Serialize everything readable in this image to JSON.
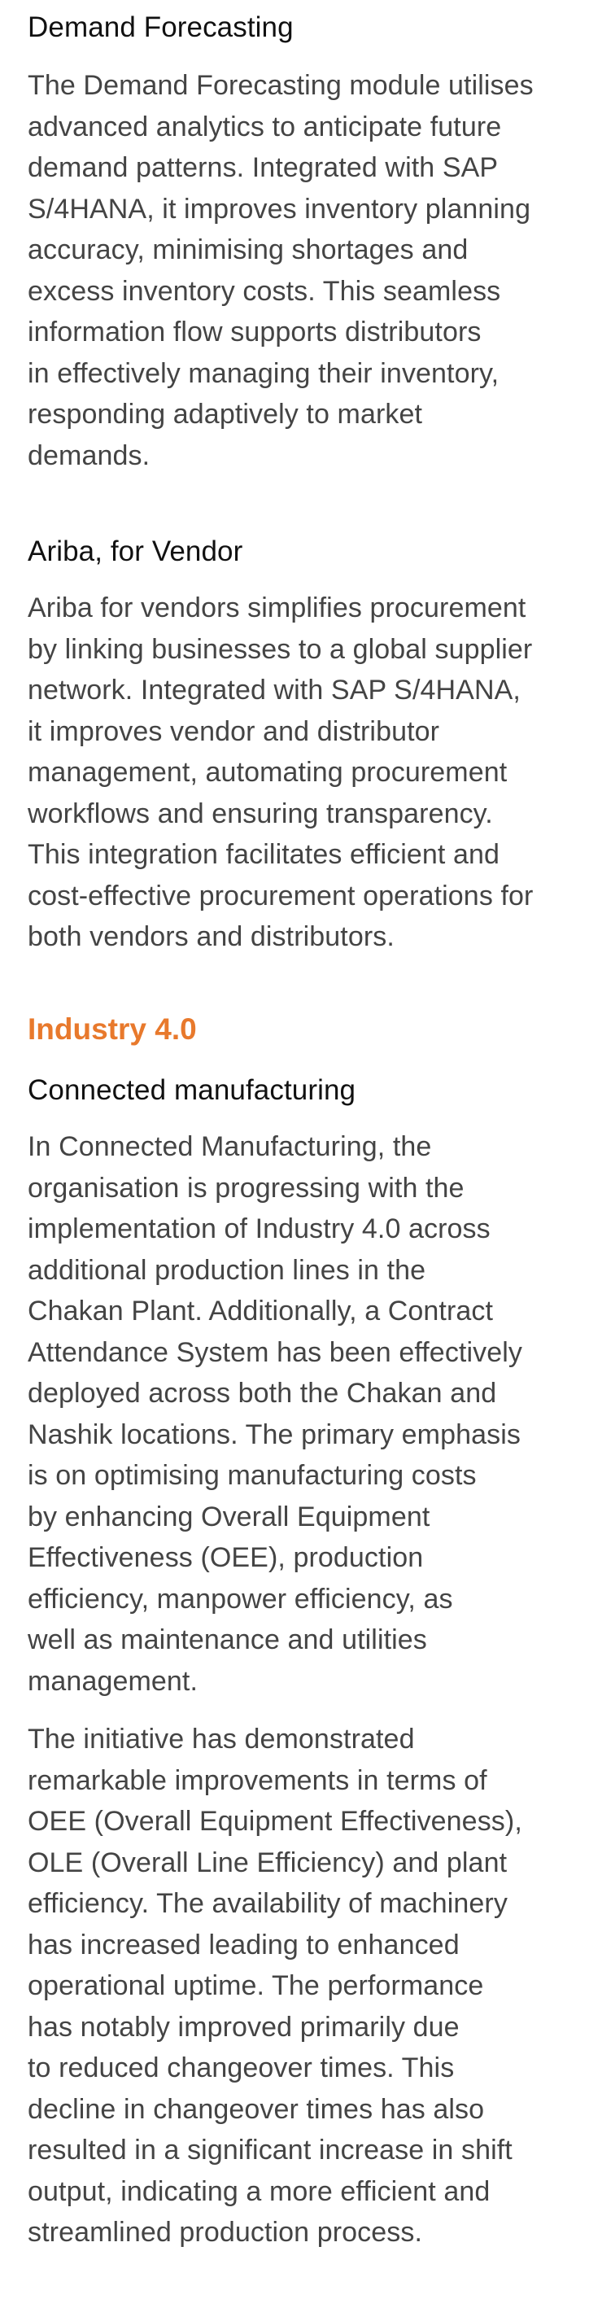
{
  "demand_forecasting": {
    "heading": "Demand Forecasting",
    "lines": [
      "The Demand Forecasting module utilises",
      "advanced analytics to anticipate future",
      "demand patterns. Integrated with SAP",
      "S/4HANA, it improves inventory planning",
      "accuracy, minimising shortages and",
      "excess inventory costs. This seamless",
      "information flow supports distributors",
      "in effectively managing their inventory,",
      "responding adaptively to market",
      "demands."
    ]
  },
  "ariba": {
    "heading": "Ariba, for Vendor",
    "lines": [
      "Ariba for vendors simplifies procurement",
      "by linking businesses to a global supplier",
      "network. Integrated with SAP S/4HANA,",
      "it improves vendor and distributor",
      "management, automating procurement",
      "workflows and ensuring transparency.",
      "This integration facilitates efficient and",
      "cost-effective procurement operations for",
      "both vendors and distributors."
    ]
  },
  "industry": {
    "heading": "Industry 4.0",
    "accent_color": "#e8792c"
  },
  "connected_manufacturing": {
    "heading": "Connected manufacturing",
    "paragraph1_lines": [
      "In Connected Manufacturing, the",
      "organisation is progressing with the",
      "implementation of Industry 4.0 across",
      "additional production lines in the",
      "Chakan Plant. Additionally, a Contract",
      "Attendance System has been effectively",
      "deployed across both the Chakan and",
      "Nashik locations. The primary emphasis",
      "is on optimising manufacturing costs",
      "by enhancing Overall Equipment",
      "Effectiveness (OEE), production",
      "efficiency, manpower efficiency, as",
      "well as maintenance and utilities",
      "management."
    ],
    "paragraph2_lines": [
      "The initiative has demonstrated",
      "remarkable improvements in terms of",
      "OEE (Overall Equipment Effectiveness),",
      "OLE (Overall Line Efficiency) and plant",
      "efficiency. The availability of machinery",
      "has increased leading to enhanced",
      "operational uptime. The performance",
      "has notably improved primarily due",
      "to reduced changeover times. This",
      "decline in changeover times has also",
      "resulted in a significant  increase in shift",
      "output, indicating a more efficient and",
      "streamlined production process."
    ]
  }
}
